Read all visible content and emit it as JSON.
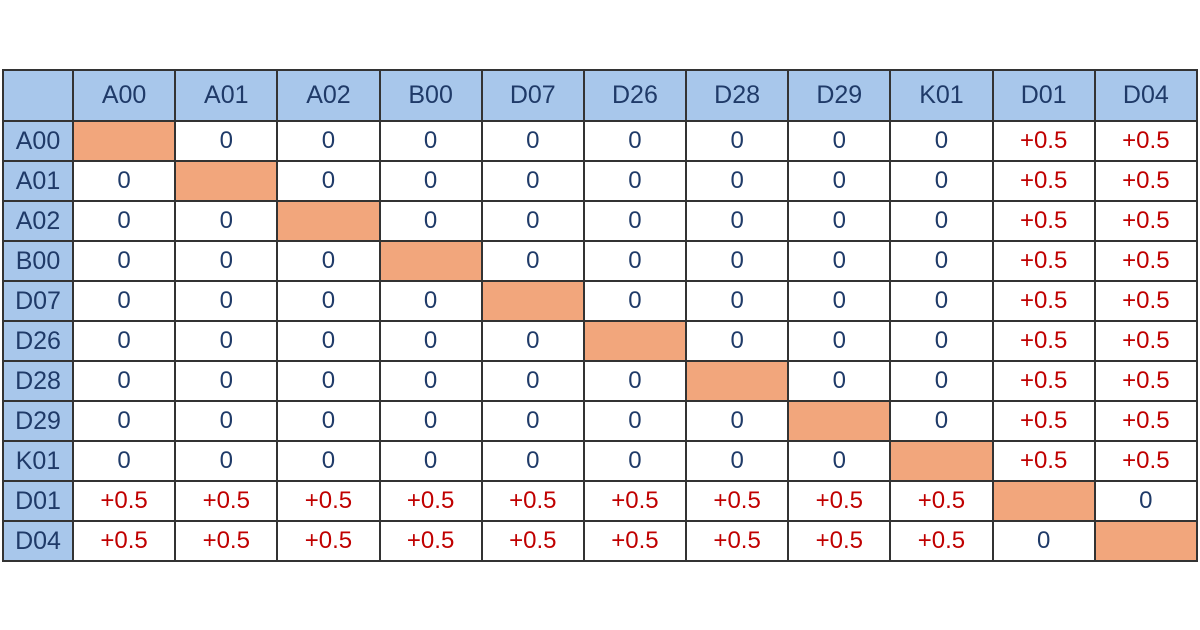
{
  "chart_data": {
    "type": "table",
    "corner_label": "",
    "columns": [
      "A00",
      "A01",
      "A02",
      "B00",
      "D07",
      "D26",
      "D28",
      "D29",
      "K01",
      "D01",
      "D04"
    ],
    "rows": [
      {
        "label": "A00",
        "cells": [
          "",
          "0",
          "0",
          "0",
          "0",
          "0",
          "0",
          "0",
          "0",
          "+0.5",
          "+0.5"
        ]
      },
      {
        "label": "A01",
        "cells": [
          "0",
          "",
          "0",
          "0",
          "0",
          "0",
          "0",
          "0",
          "0",
          "+0.5",
          "+0.5"
        ]
      },
      {
        "label": "A02",
        "cells": [
          "0",
          "0",
          "",
          "0",
          "0",
          "0",
          "0",
          "0",
          "0",
          "+0.5",
          "+0.5"
        ]
      },
      {
        "label": "B00",
        "cells": [
          "0",
          "0",
          "0",
          "",
          "0",
          "0",
          "0",
          "0",
          "0",
          "+0.5",
          "+0.5"
        ]
      },
      {
        "label": "D07",
        "cells": [
          "0",
          "0",
          "0",
          "0",
          "",
          "0",
          "0",
          "0",
          "0",
          "+0.5",
          "+0.5"
        ]
      },
      {
        "label": "D26",
        "cells": [
          "0",
          "0",
          "0",
          "0",
          "0",
          "",
          "0",
          "0",
          "0",
          "+0.5",
          "+0.5"
        ]
      },
      {
        "label": "D28",
        "cells": [
          "0",
          "0",
          "0",
          "0",
          "0",
          "0",
          "",
          "0",
          "0",
          "+0.5",
          "+0.5"
        ]
      },
      {
        "label": "D29",
        "cells": [
          "0",
          "0",
          "0",
          "0",
          "0",
          "0",
          "0",
          "",
          "0",
          "+0.5",
          "+0.5"
        ]
      },
      {
        "label": "K01",
        "cells": [
          "0",
          "0",
          "0",
          "0",
          "0",
          "0",
          "0",
          "0",
          "",
          "+0.5",
          "+0.5"
        ]
      },
      {
        "label": "D01",
        "cells": [
          "+0.5",
          "+0.5",
          "+0.5",
          "+0.5",
          "+0.5",
          "+0.5",
          "+0.5",
          "+0.5",
          "+0.5",
          "",
          "0"
        ]
      },
      {
        "label": "D04",
        "cells": [
          "+0.5",
          "+0.5",
          "+0.5",
          "+0.5",
          "+0.5",
          "+0.5",
          "+0.5",
          "+0.5",
          "+0.5",
          "0",
          ""
        ]
      }
    ]
  },
  "colors": {
    "page_bg": "#ffffff",
    "header_bg": "#a8c7eb",
    "diagonal_bg": "#f2a67c",
    "value_blue": "#1f3a68",
    "value_red": "#c00000",
    "grid_border": "#333333"
  }
}
